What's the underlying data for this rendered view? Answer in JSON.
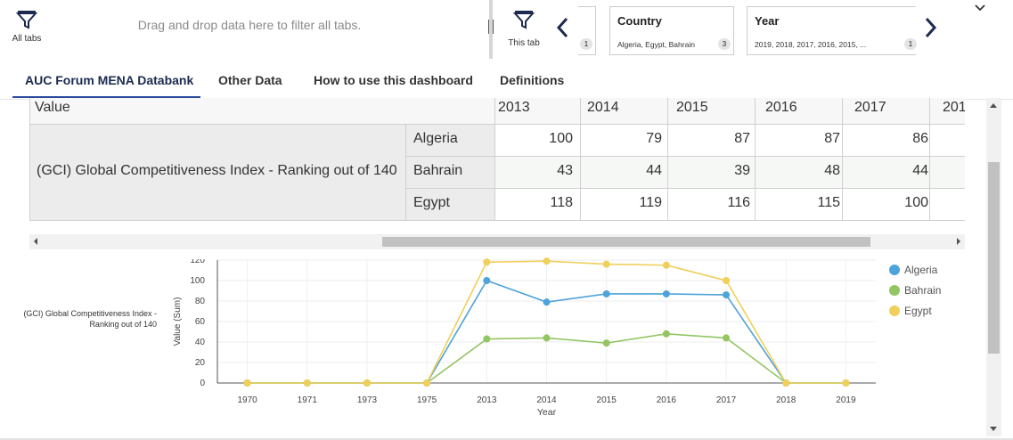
{
  "filterbar": {
    "all_tabs_label": "All tabs",
    "dropzone_text": "Drag and drop data here to filter all tabs.",
    "this_tab_label": "This tab",
    "partial_chip_count": "1",
    "chips": [
      {
        "title": "Country",
        "values": "Algeria, Egypt, Bahrain",
        "count": "3"
      },
      {
        "title": "Year",
        "values": "2019, 2018, 2017, 2016, 2015, ...",
        "count": "1"
      }
    ]
  },
  "tabs": [
    {
      "label": "AUC Forum MENA Databank",
      "active": true
    },
    {
      "label": "Other Data",
      "active": false
    },
    {
      "label": "How to use this dashboard",
      "active": false
    },
    {
      "label": "Definitions",
      "active": false
    }
  ],
  "crosstab": {
    "corner_label": "Value",
    "years": [
      "2013",
      "2014",
      "2015",
      "2016",
      "2017",
      "201"
    ],
    "row_header": "(GCI) Global Competitiveness Index - Ranking out of 140",
    "countries": [
      "Algeria",
      "Bahrain",
      "Egypt"
    ],
    "values": [
      [
        "100",
        "79",
        "87",
        "87",
        "86"
      ],
      [
        "43",
        "44",
        "39",
        "48",
        "44"
      ],
      [
        "118",
        "119",
        "116",
        "115",
        "100"
      ]
    ]
  },
  "chart_row_label": "(GCI) Global Competitiveness Index - Ranking out of 140",
  "chart_data": {
    "type": "line",
    "x": [
      "1970",
      "1971",
      "1973",
      "1975",
      "2013",
      "2014",
      "2015",
      "2016",
      "2017",
      "2018",
      "2019"
    ],
    "xlabel": "Year",
    "ylabel": "Value (Sum)",
    "ylim": [
      0,
      120
    ],
    "yticks": [
      "0",
      "20",
      "40",
      "60",
      "80",
      "100",
      "120"
    ],
    "grid": true,
    "legend": "right",
    "series": [
      {
        "name": "Algeria",
        "color": "#4ea3d8",
        "values": [
          0,
          0,
          0,
          0,
          100,
          79,
          87,
          87,
          86,
          0,
          0
        ]
      },
      {
        "name": "Bahrain",
        "color": "#93c563",
        "values": [
          0,
          0,
          0,
          0,
          43,
          44,
          39,
          48,
          44,
          0,
          0
        ]
      },
      {
        "name": "Egypt",
        "color": "#f0cf5a",
        "values": [
          0,
          0,
          0,
          0,
          118,
          119,
          116,
          115,
          100,
          0,
          0
        ]
      }
    ]
  },
  "icons": {
    "all_tabs": "filter-icon",
    "this_tab": "filter-icon",
    "prev": "chevron-left-icon",
    "next": "chevron-right-icon",
    "collapse": "chevron-down-icon"
  }
}
